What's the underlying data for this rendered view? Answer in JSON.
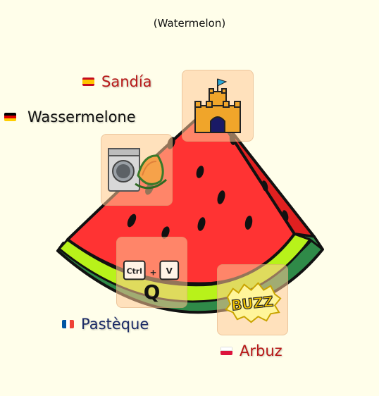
{
  "title": "(Watermelon)",
  "colors": {
    "background": "#fffeea",
    "red_text": "#b81818",
    "blue_text": "#1a2a66",
    "black_text": "#111111"
  },
  "translations": [
    {
      "lang": "Spanish",
      "flag": "spain-flag-icon",
      "word": "Sandía"
    },
    {
      "lang": "German",
      "flag": "germany-flag-icon",
      "word": "Wassermelone"
    },
    {
      "lang": "French",
      "flag": "france-flag-icon",
      "word": "Pastèque"
    },
    {
      "lang": "Polish",
      "flag": "poland-flag-icon",
      "word": "Arbuz"
    }
  ],
  "cards": [
    {
      "icon": "sandcastle-icon"
    },
    {
      "icon": "washing-machine-melon-icon"
    },
    {
      "icon": "ctrl-v-q-keyboard-icon"
    },
    {
      "icon": "buzz-comic-icon"
    }
  ],
  "keys": {
    "ctrl": "Ctrl",
    "plus": "+",
    "v": "V",
    "q": "Q"
  },
  "buzz_text": "BUZZ"
}
